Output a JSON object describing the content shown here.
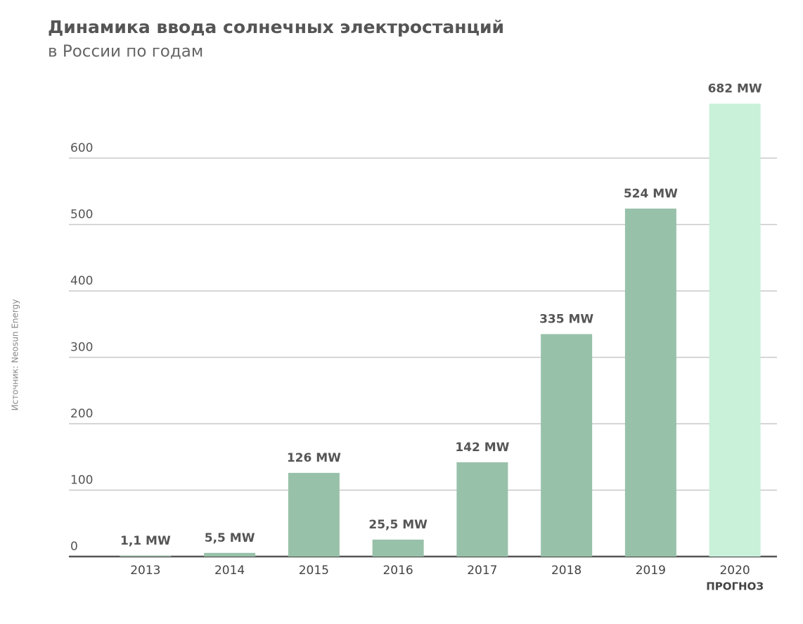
{
  "chart_data": {
    "type": "bar",
    "title": "Динамика ввода солнечных электростанций",
    "subtitle": "в России по годам",
    "source": "Источник: Neosun Energy",
    "categories": [
      "2013",
      "2014",
      "2015",
      "2016",
      "2017",
      "2018",
      "2019",
      "2020"
    ],
    "category_notes": [
      null,
      null,
      null,
      null,
      null,
      null,
      null,
      "ПРОГНОЗ"
    ],
    "values": [
      1.1,
      5.5,
      126,
      25.5,
      142,
      335,
      524,
      682
    ],
    "value_labels": [
      "1,1 MW",
      "5,5 MW",
      "126 MW",
      "25,5 MW",
      "142 MW",
      "335 MW",
      "524 MW",
      "682 MW"
    ],
    "colors": [
      "#98c1a9",
      "#98c1a9",
      "#98c1a9",
      "#98c1a9",
      "#98c1a9",
      "#98c1a9",
      "#98c1a9",
      "#c9f0d9"
    ],
    "ylim": [
      0,
      700
    ],
    "yticks": [
      0,
      100,
      200,
      300,
      400,
      500,
      600
    ],
    "grid": true
  }
}
